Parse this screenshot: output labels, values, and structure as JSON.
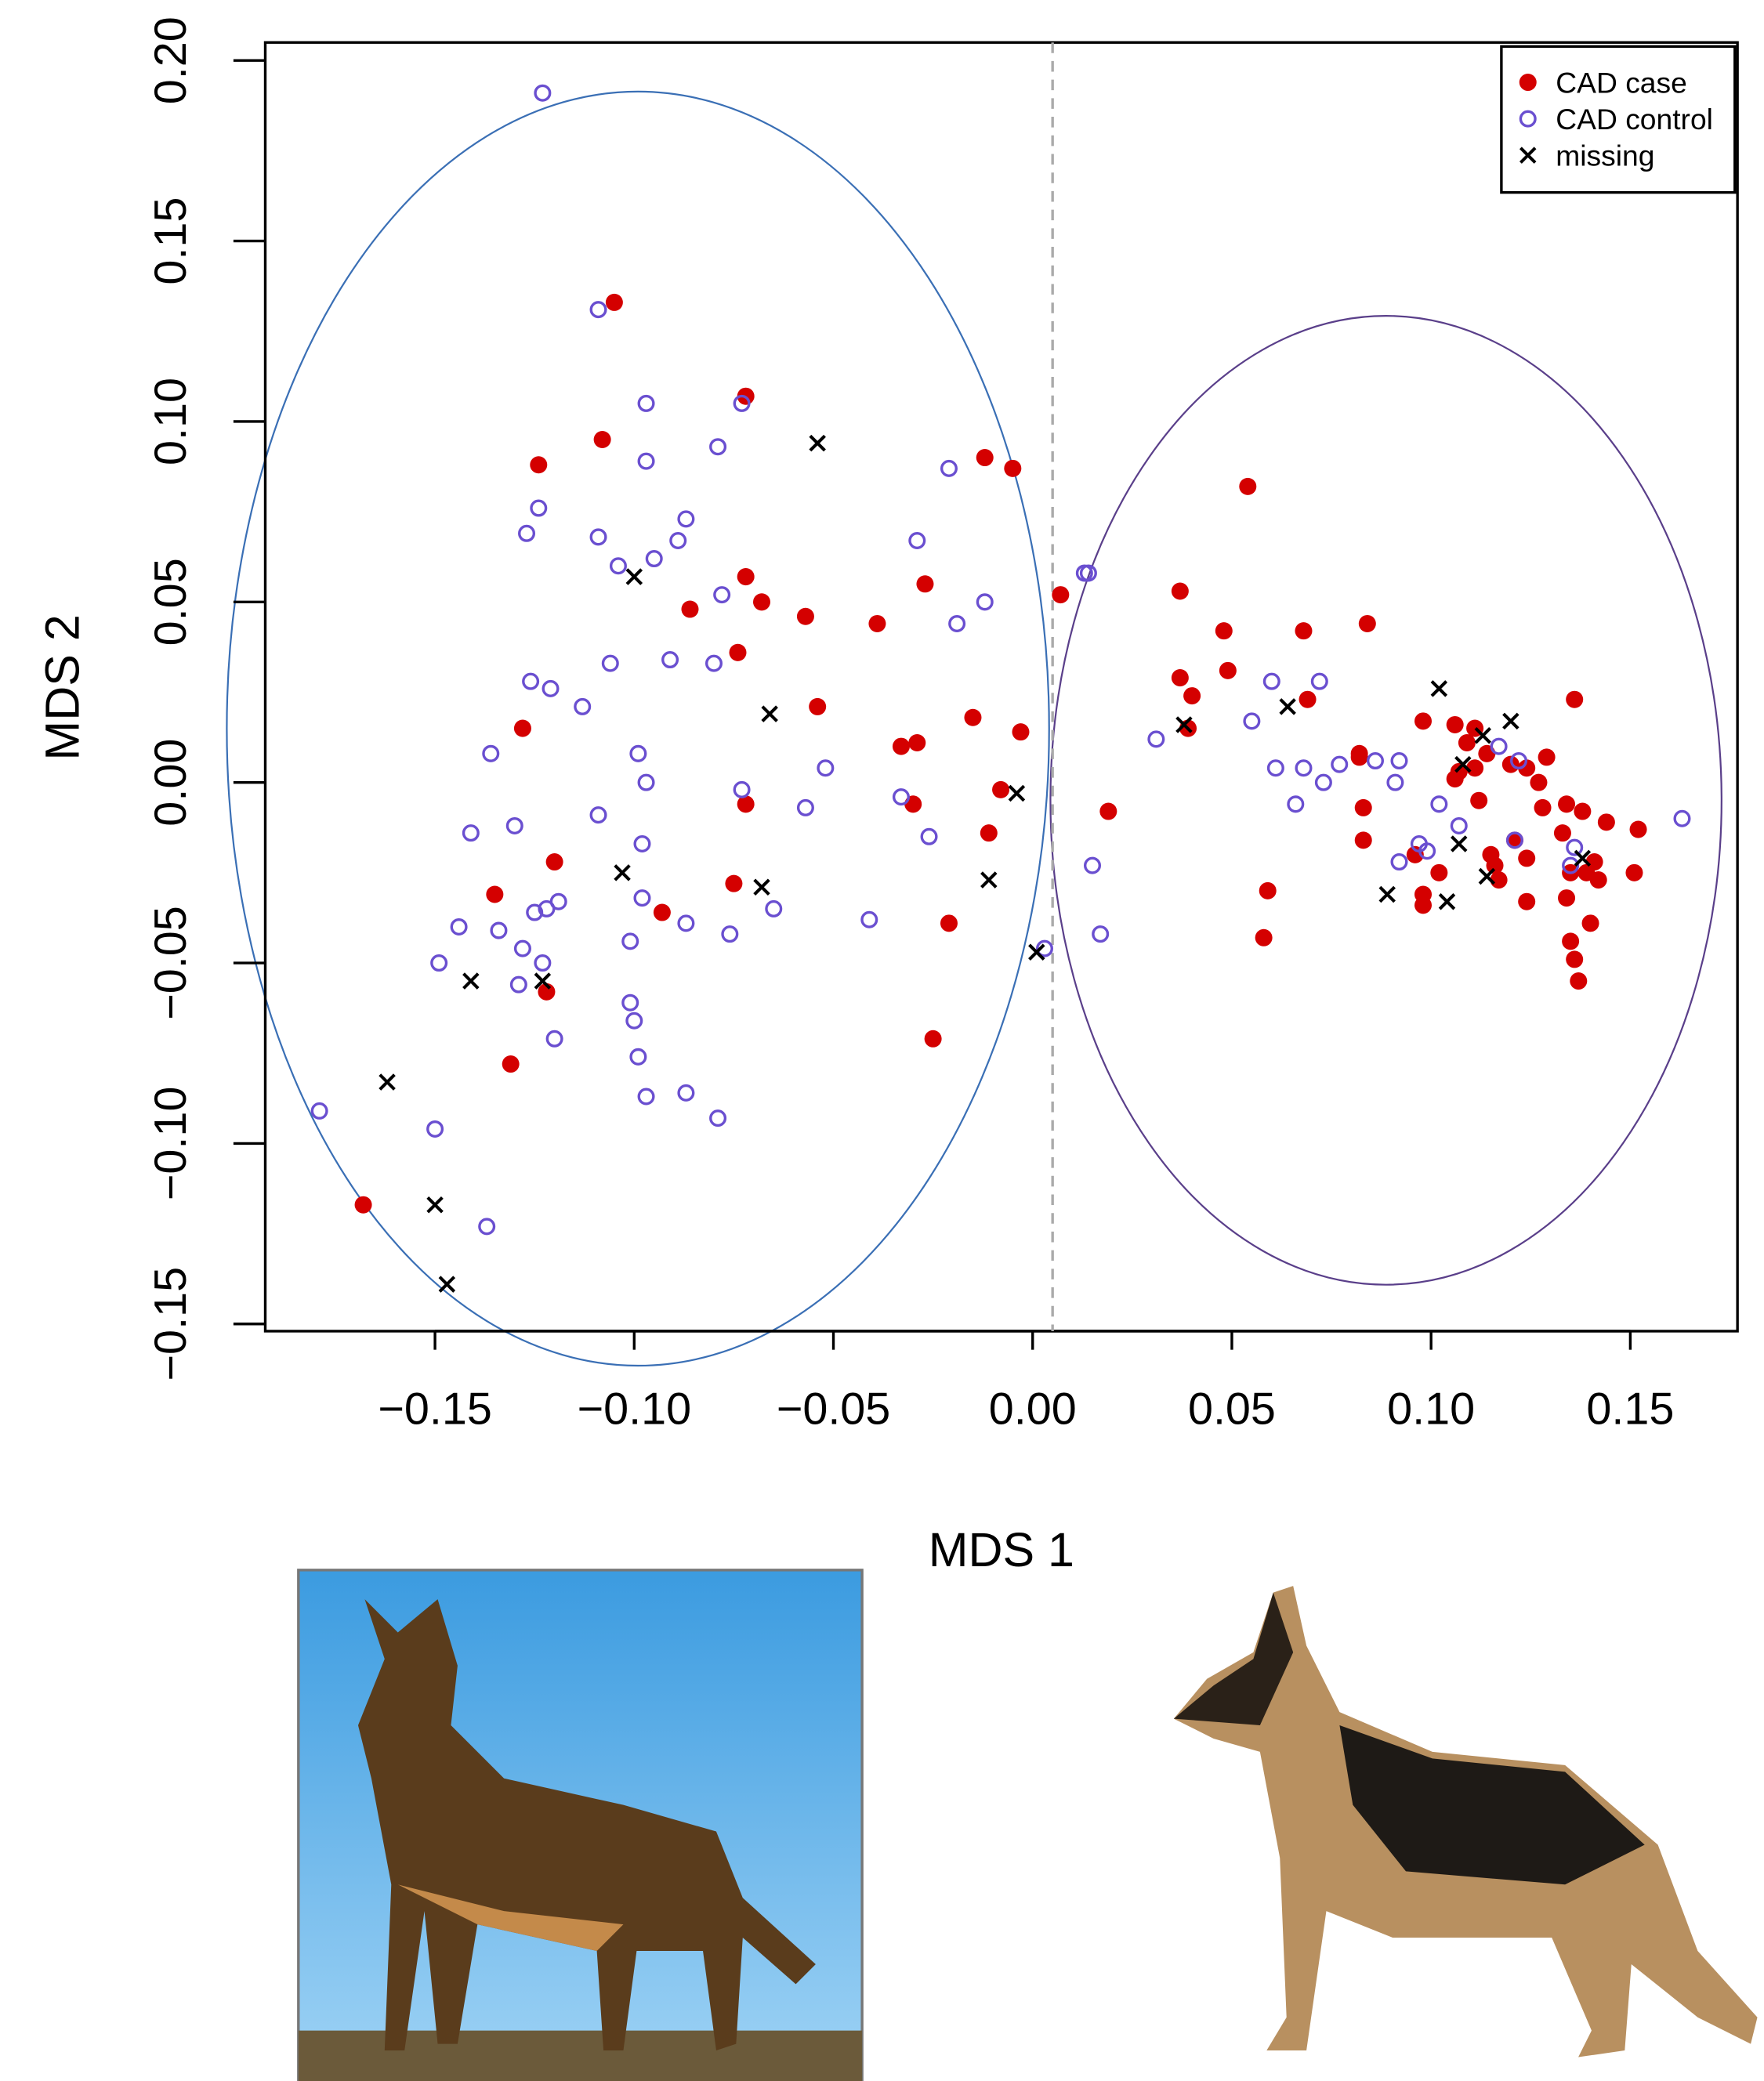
{
  "chart_data": {
    "type": "scatter",
    "xlabel": "MDS 1",
    "ylabel": "MDS 2",
    "xlim": [
      -0.1926,
      0.1769
    ],
    "ylim": [
      -0.152,
      0.205
    ],
    "xticks": [
      {
        "value": -0.15,
        "label": "−0.15"
      },
      {
        "value": -0.1,
        "label": "−0.10"
      },
      {
        "value": -0.05,
        "label": "−0.05"
      },
      {
        "value": 0,
        "label": "0.00"
      },
      {
        "value": 0.05,
        "label": "0.05"
      },
      {
        "value": 0.1,
        "label": "0.10"
      },
      {
        "value": 0.15,
        "label": "0.15"
      }
    ],
    "yticks": [
      {
        "value": -0.15,
        "label": "−0.15"
      },
      {
        "value": -0.1,
        "label": "−0.10"
      },
      {
        "value": -0.05,
        "label": "−0.05"
      },
      {
        "value": 0,
        "label": "0.00"
      },
      {
        "value": 0.05,
        "label": "0.05"
      },
      {
        "value": 0.1,
        "label": "0.10"
      },
      {
        "value": 0.15,
        "label": "0.15"
      },
      {
        "value": 0.2,
        "label": "0.20"
      }
    ],
    "vline": 0.005,
    "legend": "top-right",
    "series": [
      {
        "name": "CAD case",
        "color": "#d40000",
        "marker": "filled-circle",
        "x": [
          -0.105,
          -0.072,
          -0.108,
          -0.124,
          -0.012,
          -0.005,
          0.054,
          -0.072,
          -0.068,
          -0.086,
          -0.057,
          -0.039,
          -0.027,
          -0.074,
          0.007,
          0.037,
          0.048,
          0.068,
          0.084,
          0.037,
          0.049,
          0.04,
          0.069,
          0.136,
          -0.054,
          -0.128,
          -0.015,
          -0.003,
          0.039,
          -0.029,
          -0.033,
          0.098,
          0.106,
          0.111,
          0.109,
          0.114,
          0.082,
          0.082,
          0.12,
          0.124,
          0.129,
          0.107,
          0.111,
          0.127,
          0.106,
          0.112,
          0.134,
          0.128,
          0.138,
          0.144,
          0.152,
          0.083,
          0.019,
          -0.072,
          -0.03,
          -0.008,
          -0.011,
          0.133,
          0.083,
          0.121,
          0.115,
          0.124,
          0.141,
          0.096,
          0.116,
          0.135,
          0.139,
          0.142,
          0.151,
          0.102,
          0.117,
          0.098,
          0.098,
          0.124,
          0.134,
          0.14,
          0.059,
          -0.12,
          -0.135,
          -0.075,
          -0.093,
          -0.021,
          0.058,
          0.135,
          0.136,
          0.137,
          -0.122,
          -0.131,
          -0.025,
          -0.168
        ],
        "values": [
          0.133,
          0.107,
          0.095,
          0.088,
          0.09,
          0.087,
          0.082,
          0.057,
          0.05,
          0.048,
          0.046,
          0.044,
          0.055,
          0.036,
          0.052,
          0.053,
          0.042,
          0.042,
          0.044,
          0.029,
          0.031,
          0.024,
          0.023,
          0.023,
          0.021,
          0.015,
          0.018,
          0.014,
          0.015,
          0.011,
          0.01,
          0.017,
          0.016,
          0.015,
          0.011,
          0.008,
          0.007,
          0.008,
          0.005,
          0.004,
          0.007,
          0.003,
          0.004,
          0.0,
          0.001,
          -0.005,
          -0.006,
          -0.007,
          -0.008,
          -0.011,
          -0.013,
          -0.007,
          -0.008,
          -0.006,
          -0.006,
          -0.002,
          -0.014,
          -0.014,
          -0.016,
          -0.016,
          -0.02,
          -0.021,
          -0.022,
          -0.02,
          -0.023,
          -0.025,
          -0.025,
          -0.027,
          -0.025,
          -0.025,
          -0.027,
          -0.031,
          -0.034,
          -0.033,
          -0.032,
          -0.039,
          -0.03,
          -0.022,
          -0.031,
          -0.028,
          -0.036,
          -0.039,
          -0.043,
          -0.044,
          -0.049,
          -0.055,
          -0.058,
          -0.078,
          -0.071,
          -0.117
        ]
      },
      {
        "name": "CAD control",
        "color": "#6a4fd0",
        "marker": "open-circle",
        "x": [
          -0.123,
          -0.109,
          -0.073,
          -0.097,
          -0.079,
          -0.097,
          -0.021,
          -0.124,
          -0.087,
          -0.127,
          -0.109,
          -0.089,
          -0.029,
          -0.095,
          -0.104,
          0.013,
          0.014,
          -0.078,
          -0.012,
          -0.019,
          -0.106,
          -0.091,
          -0.08,
          -0.126,
          -0.121,
          -0.113,
          0.06,
          0.072,
          0.055,
          0.031,
          -0.136,
          -0.099,
          -0.052,
          -0.097,
          0.061,
          0.068,
          0.077,
          0.086,
          0.092,
          0.073,
          0.091,
          0.117,
          0.122,
          -0.073,
          -0.057,
          0.066,
          0.102,
          0.163,
          -0.033,
          -0.109,
          -0.13,
          -0.141,
          -0.026,
          -0.098,
          0.107,
          0.121,
          0.136,
          0.097,
          0.099,
          0.092,
          0.135,
          0.015,
          -0.098,
          -0.119,
          -0.122,
          -0.125,
          -0.065,
          -0.041,
          -0.087,
          -0.144,
          -0.134,
          -0.076,
          0.017,
          -0.101,
          -0.128,
          0.003,
          -0.149,
          -0.123,
          -0.129,
          -0.101,
          -0.1,
          -0.12,
          -0.099,
          -0.097,
          -0.087,
          -0.079,
          -0.179,
          -0.15,
          -0.137
        ],
        "values": [
          0.191,
          0.131,
          0.105,
          0.105,
          0.093,
          0.089,
          0.087,
          0.076,
          0.073,
          0.069,
          0.068,
          0.067,
          0.067,
          0.062,
          0.06,
          0.058,
          0.058,
          0.052,
          0.05,
          0.044,
          0.033,
          0.034,
          0.033,
          0.028,
          0.026,
          0.021,
          0.028,
          0.028,
          0.017,
          0.012,
          0.008,
          0.008,
          0.004,
          0.0,
          0.004,
          0.004,
          0.005,
          0.006,
          0.006,
          0.0,
          0.0,
          0.01,
          0.006,
          -0.002,
          -0.007,
          -0.006,
          -0.006,
          -0.01,
          -0.004,
          -0.009,
          -0.012,
          -0.014,
          -0.015,
          -0.017,
          -0.012,
          -0.016,
          -0.018,
          -0.017,
          -0.019,
          -0.022,
          -0.023,
          -0.023,
          -0.032,
          -0.033,
          -0.035,
          -0.036,
          -0.035,
          -0.038,
          -0.039,
          -0.04,
          -0.041,
          -0.042,
          -0.042,
          -0.044,
          -0.046,
          -0.046,
          -0.05,
          -0.05,
          -0.056,
          -0.061,
          -0.066,
          -0.071,
          -0.076,
          -0.087,
          -0.086,
          -0.093,
          -0.091,
          -0.096,
          -0.123
        ]
      },
      {
        "name": "missing",
        "color": "#000000",
        "marker": "cross",
        "x": [
          -0.054,
          -0.1,
          -0.066,
          0.064,
          0.038,
          0.102,
          0.113,
          0.12,
          0.108,
          -0.004,
          -0.103,
          -0.068,
          -0.011,
          0.107,
          0.114,
          0.138,
          0.089,
          0.104,
          0.001,
          -0.141,
          -0.123,
          -0.162,
          -0.15,
          -0.147
        ],
        "values": [
          0.094,
          0.057,
          0.019,
          0.021,
          0.016,
          0.026,
          0.013,
          0.017,
          0.005,
          -0.003,
          -0.025,
          -0.029,
          -0.027,
          -0.017,
          -0.026,
          -0.021,
          -0.031,
          -0.033,
          -0.047,
          -0.055,
          -0.055,
          -0.083,
          -0.117,
          -0.139
        ]
      }
    ]
  }
}
